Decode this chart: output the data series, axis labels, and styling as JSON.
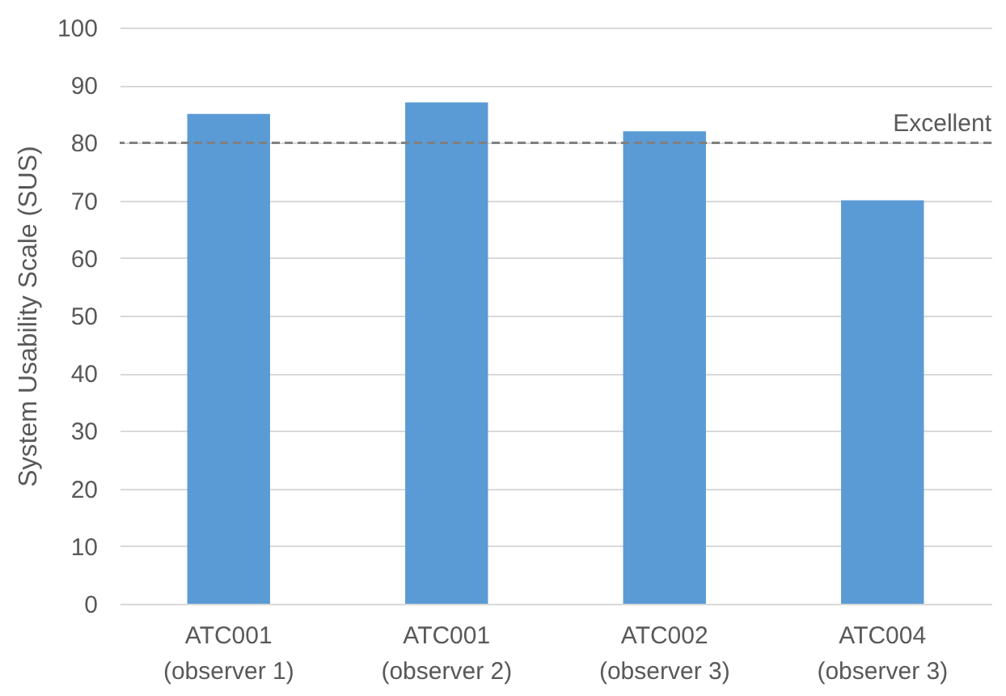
{
  "chart_data": {
    "type": "bar",
    "ylabel": "System Usability Scale (SUS)",
    "categories": [
      "ATC001\n(observer 1)",
      "ATC001\n(observer 2)",
      "ATC002\n(observer 3)",
      "ATC004\n(observer 3)"
    ],
    "values": [
      85,
      87,
      82,
      70
    ],
    "color": "#5b9bd5",
    "ylim": [
      0,
      100
    ],
    "yticks": [
      0,
      10,
      20,
      30,
      40,
      50,
      60,
      70,
      80,
      90,
      100
    ],
    "grid": "y",
    "ref_lines": [
      {
        "axis": "y",
        "value": 80,
        "label": "Excellent",
        "color": "#808080",
        "line_style": "dashed"
      }
    ]
  }
}
